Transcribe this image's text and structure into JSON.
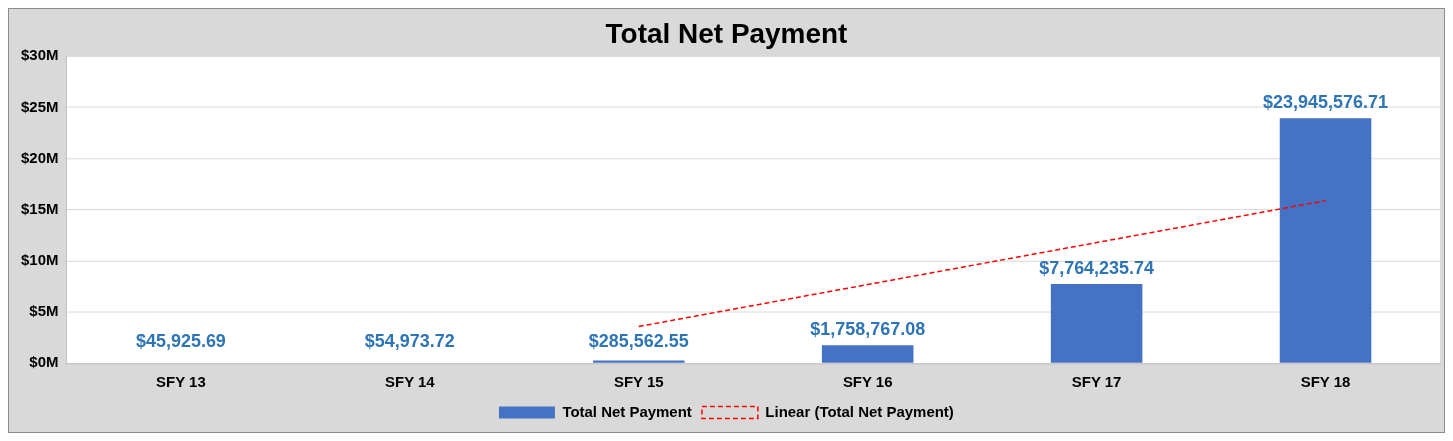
{
  "chart_data": {
    "type": "bar",
    "title": "Total Net Payment",
    "categories": [
      "SFY 13",
      "SFY 14",
      "SFY 15",
      "SFY 16",
      "SFY 17",
      "SFY 18"
    ],
    "series": [
      {
        "name": "Total Net Payment",
        "color": "#4472c4",
        "values": [
          45925.69,
          54973.72,
          285562.55,
          1758767.08,
          7764235.74,
          23945576.71
        ],
        "value_labels": [
          "$45,925.69",
          "$54,973.72",
          "$285,562.55",
          "$1,758,767.08",
          "$7,764,235.74",
          "$23,945,576.71"
        ]
      },
      {
        "name": "Linear (Total Net Payment)",
        "type": "line",
        "color": "#ff0000",
        "line_style": "dashed",
        "marker": "none",
        "values": [
          null,
          null,
          3600000,
          7700000,
          11800000,
          15900000
        ]
      }
    ],
    "ylim": [
      0,
      30000000
    ],
    "yticks": [
      {
        "value": 0,
        "label": "$0M"
      },
      {
        "value": 5000000,
        "label": "$5M"
      },
      {
        "value": 10000000,
        "label": "$10M"
      },
      {
        "value": 15000000,
        "label": "$15M"
      },
      {
        "value": 20000000,
        "label": "$20M"
      },
      {
        "value": 25000000,
        "label": "$25M"
      },
      {
        "value": 30000000,
        "label": "$30M"
      }
    ],
    "grid": "y",
    "legend": "bottom"
  }
}
